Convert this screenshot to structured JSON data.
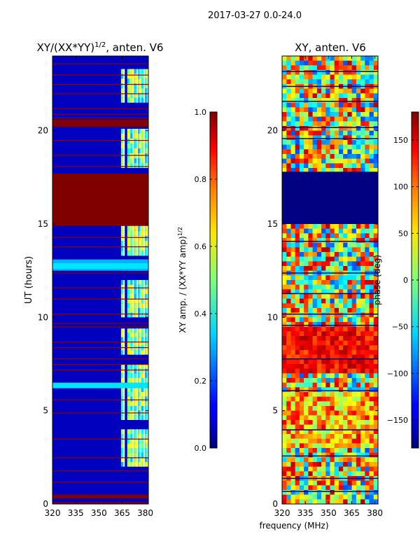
{
  "figure": {
    "suptitle": "2017-03-27 0.0-24.0",
    "shared_xlabel": "frequency (MHz)"
  },
  "chart_data": [
    {
      "type": "heatmap",
      "title": "XY/(XX*YY)^{1/2}, anten. V6",
      "title_parts": {
        "main": "XY/(XX*YY)",
        "sup": "1/2",
        "tail": ", anten. V6"
      },
      "xlabel": "",
      "ylabel": "UT (hours)",
      "xlim": [
        320,
        382
      ],
      "ylim": [
        0,
        24
      ],
      "xticks": [
        320,
        335,
        350,
        365,
        380
      ],
      "yticks": [
        0,
        5,
        10,
        15,
        20
      ],
      "colormap": "jet",
      "colorbar": {
        "label": "XY amp. / (XX*YY amp)^{1/2}",
        "label_parts": {
          "main": "XY amp. / (XX*YY amp)",
          "sup": "1/2"
        },
        "range": [
          0.0,
          1.0
        ],
        "ticks": [
          0.0,
          0.2,
          0.4,
          0.6,
          0.8,
          1.0
        ],
        "tick_labels": [
          "0.0",
          "0.2",
          "0.4",
          "0.6",
          "0.8",
          "1.0"
        ]
      },
      "bands": [
        {
          "t0": 17.7,
          "t1": 24.0,
          "v": 0.05
        },
        {
          "t0": 14.9,
          "t1": 17.7,
          "v": 1.0
        },
        {
          "t0": 0.0,
          "t1": 14.9,
          "v": 0.05
        },
        {
          "t0": 20.2,
          "t1": 20.6,
          "v": 1.0
        },
        {
          "t0": 12.5,
          "t1": 13.1,
          "v": 0.3
        },
        {
          "t0": 6.2,
          "t1": 6.5,
          "v": 0.35
        },
        {
          "t0": 0.3,
          "t1": 0.5,
          "v": 1.0
        },
        {
          "t0": 0.0,
          "t1": 0.1,
          "v": 1.0
        }
      ],
      "lines_time": [
        23.6,
        23.0,
        22.5,
        22.0,
        21.2,
        20.9,
        20.7,
        19.5,
        18.7,
        18.1,
        14.3,
        13.8,
        12.4,
        11.6,
        11.0,
        10.2,
        9.7,
        9.5,
        8.7,
        8.4,
        7.8,
        7.5,
        7.2,
        5.6,
        4.9,
        3.5,
        2.5,
        1.8,
        1.2
      ],
      "hot_channels": [
        365.5,
        369.5,
        371.5,
        374,
        376.5,
        378.5,
        381
      ],
      "hot_ranges": [
        [
          2.0,
          4.0
        ],
        [
          4.5,
          7.5
        ],
        [
          8.0,
          9.4
        ],
        [
          10.0,
          12.0
        ],
        [
          12.5,
          13.1
        ],
        [
          13.3,
          14.9
        ],
        [
          18.0,
          20.1
        ],
        [
          21.5,
          23.3
        ]
      ]
    },
    {
      "type": "heatmap",
      "title": "XY, anten. V6",
      "xlabel": "frequency (MHz)",
      "ylabel": "",
      "xlim": [
        320,
        382
      ],
      "ylim": [
        0,
        24
      ],
      "xticks": [
        320,
        335,
        350,
        365,
        380
      ],
      "yticks": [
        0,
        5,
        10,
        15,
        20
      ],
      "colormap": "jet",
      "colorbar": {
        "label": "phase (deg)",
        "range": [
          -180,
          180
        ],
        "ticks": [
          -150,
          -100,
          -50,
          0,
          50,
          100,
          150
        ],
        "tick_labels": [
          "−150",
          "−100",
          "−50",
          "0",
          "50",
          "100",
          "150"
        ]
      },
      "bands": [
        {
          "t0": 15.0,
          "t1": 17.8,
          "v": -180
        },
        {
          "t0": 7.0,
          "t1": 9.5,
          "v": 120
        },
        {
          "t0": 0.0,
          "t1": 24.0,
          "v": 0
        }
      ],
      "lines_time": [
        23.2,
        22.4,
        21.6,
        20.2,
        19.6,
        14.1,
        12.4,
        11.3,
        10.2,
        9.6,
        7.8,
        6.1,
        4.0,
        2.6,
        1.4,
        0.7
      ]
    }
  ]
}
